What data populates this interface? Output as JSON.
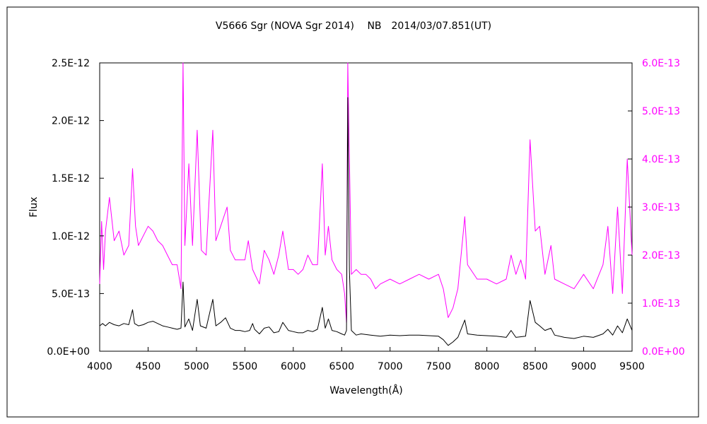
{
  "chart_data": {
    "type": "line",
    "title": "V5666 Sgr (NOVA Sgr 2014)　 NB　2014/03/07.851(UT)",
    "xlabel": "Wavelength(Å)",
    "ylabel": "Flux",
    "xlim": [
      4000,
      9500
    ],
    "ylim_left": [
      0,
      2.5e-12
    ],
    "ylim_right": [
      0,
      6e-13
    ],
    "x_ticks": [
      "4000",
      "4500",
      "5000",
      "5500",
      "6000",
      "6500",
      "7000",
      "7500",
      "8000",
      "8500",
      "9000",
      "9500"
    ],
    "y_ticks_left": [
      "0.0E+00",
      "5.0E-13",
      "1.0E-12",
      "1.5E-12",
      "2.0E-12",
      "2.5E-12"
    ],
    "y_ticks_right": [
      "0.0E+00",
      "1.0E-13",
      "2.0E-13",
      "3.0E-13",
      "4.0E-13",
      "5.0E-13",
      "6.0E-13"
    ],
    "grid": false,
    "colors": {
      "left_series": "#000000",
      "right_series": "#ff00ff"
    },
    "series": [
      {
        "axis": "left",
        "color": "#000000",
        "points": [
          [
            4000,
            2.2e-13
          ],
          [
            4030,
            2.4e-13
          ],
          [
            4060,
            2.2e-13
          ],
          [
            4100,
            2.5e-13
          ],
          [
            4150,
            2.3e-13
          ],
          [
            4200,
            2.2e-13
          ],
          [
            4250,
            2.4e-13
          ],
          [
            4300,
            2.3e-13
          ],
          [
            4340,
            3.6e-13
          ],
          [
            4360,
            2.4e-13
          ],
          [
            4400,
            2.2e-13
          ],
          [
            4450,
            2.3e-13
          ],
          [
            4500,
            2.5e-13
          ],
          [
            4550,
            2.6e-13
          ],
          [
            4600,
            2.4e-13
          ],
          [
            4650,
            2.2e-13
          ],
          [
            4700,
            2.1e-13
          ],
          [
            4750,
            2e-13
          ],
          [
            4800,
            1.9e-13
          ],
          [
            4840,
            2e-13
          ],
          [
            4861,
            6e-13
          ],
          [
            4880,
            2.1e-13
          ],
          [
            4920,
            2.8e-13
          ],
          [
            4959,
            1.8e-13
          ],
          [
            5007,
            4.5e-13
          ],
          [
            5040,
            2.2e-13
          ],
          [
            5100,
            2e-13
          ],
          [
            5169,
            4.5e-13
          ],
          [
            5200,
            2.2e-13
          ],
          [
            5250,
            2.5e-13
          ],
          [
            5300,
            2.9e-13
          ],
          [
            5350,
            2e-13
          ],
          [
            5400,
            1.8e-13
          ],
          [
            5450,
            1.8e-13
          ],
          [
            5500,
            1.7e-13
          ],
          [
            5550,
            1.8e-13
          ],
          [
            5580,
            2.4e-13
          ],
          [
            5600,
            1.9e-13
          ],
          [
            5650,
            1.5e-13
          ],
          [
            5700,
            2e-13
          ],
          [
            5750,
            2.1e-13
          ],
          [
            5800,
            1.6e-13
          ],
          [
            5850,
            1.7e-13
          ],
          [
            5892,
            2.5e-13
          ],
          [
            5950,
            1.8e-13
          ],
          [
            6000,
            1.7e-13
          ],
          [
            6050,
            1.6e-13
          ],
          [
            6100,
            1.6e-13
          ],
          [
            6150,
            1.8e-13
          ],
          [
            6200,
            1.7e-13
          ],
          [
            6250,
            1.9e-13
          ],
          [
            6300,
            3.8e-13
          ],
          [
            6330,
            2e-13
          ],
          [
            6363,
            2.8e-13
          ],
          [
            6400,
            1.8e-13
          ],
          [
            6450,
            1.7e-13
          ],
          [
            6500,
            1.5e-13
          ],
          [
            6530,
            1.4e-13
          ],
          [
            6550,
            1.8e-13
          ],
          [
            6563,
            2.2e-12
          ],
          [
            6580,
            7e-13
          ],
          [
            6600,
            1.8e-13
          ],
          [
            6650,
            1.4e-13
          ],
          [
            6700,
            1.5e-13
          ],
          [
            6800,
            1.4e-13
          ],
          [
            6900,
            1.3e-13
          ],
          [
            7000,
            1.4e-13
          ],
          [
            7100,
            1.35e-13
          ],
          [
            7200,
            1.4e-13
          ],
          [
            7300,
            1.4e-13
          ],
          [
            7400,
            1.35e-13
          ],
          [
            7500,
            1.3e-13
          ],
          [
            7550,
            1e-13
          ],
          [
            7600,
            5e-14
          ],
          [
            7650,
            8e-14
          ],
          [
            7700,
            1.2e-13
          ],
          [
            7772,
            2.7e-13
          ],
          [
            7800,
            1.5e-13
          ],
          [
            7900,
            1.4e-13
          ],
          [
            8000,
            1.35e-13
          ],
          [
            8100,
            1.3e-13
          ],
          [
            8200,
            1.2e-13
          ],
          [
            8250,
            1.8e-13
          ],
          [
            8300,
            1.2e-13
          ],
          [
            8400,
            1.3e-13
          ],
          [
            8446,
            4.4e-13
          ],
          [
            8500,
            2.5e-13
          ],
          [
            8545,
            2.2e-13
          ],
          [
            8600,
            1.8e-13
          ],
          [
            8662,
            2e-13
          ],
          [
            8700,
            1.4e-13
          ],
          [
            8800,
            1.2e-13
          ],
          [
            8900,
            1.1e-13
          ],
          [
            9000,
            1.3e-13
          ],
          [
            9100,
            1.2e-13
          ],
          [
            9200,
            1.5e-13
          ],
          [
            9250,
            1.9e-13
          ],
          [
            9300,
            1.4e-13
          ],
          [
            9350,
            2.2e-13
          ],
          [
            9400,
            1.6e-13
          ],
          [
            9450,
            2.8e-13
          ],
          [
            9500,
            1.8e-13
          ]
        ]
      },
      {
        "axis": "right",
        "color": "#ff00ff",
        "points": [
          [
            4000,
            1.4e-13
          ],
          [
            4020,
            2.7e-13
          ],
          [
            4040,
            1.7e-13
          ],
          [
            4060,
            2.5e-13
          ],
          [
            4101,
            3.2e-13
          ],
          [
            4150,
            2.3e-13
          ],
          [
            4200,
            2.5e-13
          ],
          [
            4250,
            2e-13
          ],
          [
            4300,
            2.2e-13
          ],
          [
            4340,
            3.8e-13
          ],
          [
            4370,
            2.6e-13
          ],
          [
            4400,
            2.2e-13
          ],
          [
            4450,
            2.4e-13
          ],
          [
            4500,
            2.6e-13
          ],
          [
            4550,
            2.5e-13
          ],
          [
            4600,
            2.3e-13
          ],
          [
            4650,
            2.2e-13
          ],
          [
            4700,
            2e-13
          ],
          [
            4750,
            1.8e-13
          ],
          [
            4800,
            1.8e-13
          ],
          [
            4840,
            1.3e-13
          ],
          [
            4861,
            6e-13
          ],
          [
            4880,
            2.2e-13
          ],
          [
            4921,
            3.9e-13
          ],
          [
            4959,
            2.2e-13
          ],
          [
            5007,
            4.6e-13
          ],
          [
            5050,
            2.1e-13
          ],
          [
            5100,
            2e-13
          ],
          [
            5169,
            4.6e-13
          ],
          [
            5200,
            2.3e-13
          ],
          [
            5250,
            2.6e-13
          ],
          [
            5316,
            3e-13
          ],
          [
            5350,
            2.1e-13
          ],
          [
            5400,
            1.9e-13
          ],
          [
            5450,
            1.9e-13
          ],
          [
            5500,
            1.9e-13
          ],
          [
            5535,
            2.3e-13
          ],
          [
            5580,
            1.7e-13
          ],
          [
            5650,
            1.4e-13
          ],
          [
            5700,
            2.1e-13
          ],
          [
            5750,
            1.9e-13
          ],
          [
            5800,
            1.6e-13
          ],
          [
            5850,
            2e-13
          ],
          [
            5892,
            2.5e-13
          ],
          [
            5950,
            1.7e-13
          ],
          [
            6000,
            1.7e-13
          ],
          [
            6050,
            1.6e-13
          ],
          [
            6100,
            1.7e-13
          ],
          [
            6150,
            2e-13
          ],
          [
            6200,
            1.8e-13
          ],
          [
            6250,
            1.8e-13
          ],
          [
            6300,
            3.9e-13
          ],
          [
            6330,
            2e-13
          ],
          [
            6363,
            2.6e-13
          ],
          [
            6400,
            1.9e-13
          ],
          [
            6450,
            1.7e-13
          ],
          [
            6500,
            1.6e-13
          ],
          [
            6530,
            1.2e-13
          ],
          [
            6550,
            6e-14
          ],
          [
            6563,
            6e-13
          ],
          [
            6600,
            1.6e-13
          ],
          [
            6650,
            1.7e-13
          ],
          [
            6700,
            1.6e-13
          ],
          [
            6750,
            1.6e-13
          ],
          [
            6800,
            1.5e-13
          ],
          [
            6850,
            1.3e-13
          ],
          [
            6900,
            1.4e-13
          ],
          [
            7000,
            1.5e-13
          ],
          [
            7100,
            1.4e-13
          ],
          [
            7200,
            1.5e-13
          ],
          [
            7300,
            1.6e-13
          ],
          [
            7400,
            1.5e-13
          ],
          [
            7500,
            1.6e-13
          ],
          [
            7550,
            1.3e-13
          ],
          [
            7600,
            7e-14
          ],
          [
            7650,
            9e-14
          ],
          [
            7700,
            1.3e-13
          ],
          [
            7772,
            2.8e-13
          ],
          [
            7800,
            1.8e-13
          ],
          [
            7900,
            1.5e-13
          ],
          [
            8000,
            1.5e-13
          ],
          [
            8100,
            1.4e-13
          ],
          [
            8200,
            1.5e-13
          ],
          [
            8250,
            2e-13
          ],
          [
            8300,
            1.6e-13
          ],
          [
            8350,
            1.9e-13
          ],
          [
            8400,
            1.5e-13
          ],
          [
            8446,
            4.4e-13
          ],
          [
            8500,
            2.5e-13
          ],
          [
            8545,
            2.6e-13
          ],
          [
            8600,
            1.6e-13
          ],
          [
            8662,
            2.2e-13
          ],
          [
            8700,
            1.5e-13
          ],
          [
            8800,
            1.4e-13
          ],
          [
            8900,
            1.3e-13
          ],
          [
            9000,
            1.6e-13
          ],
          [
            9100,
            1.3e-13
          ],
          [
            9200,
            1.8e-13
          ],
          [
            9250,
            2.6e-13
          ],
          [
            9300,
            1.2e-13
          ],
          [
            9350,
            3e-13
          ],
          [
            9400,
            1.2e-13
          ],
          [
            9450,
            4e-13
          ],
          [
            9500,
            2e-13
          ]
        ]
      }
    ]
  }
}
